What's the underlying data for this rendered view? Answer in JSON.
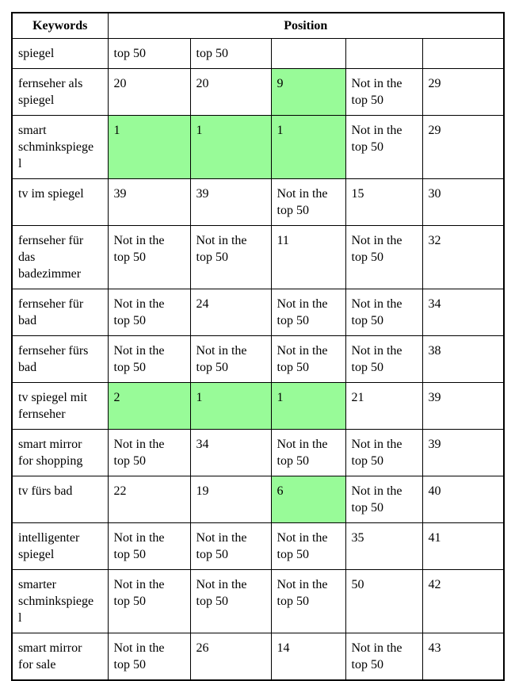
{
  "colors": {
    "highlight": "#98FB98",
    "border": "#000000",
    "background": "#ffffff",
    "text": "#000000"
  },
  "table": {
    "header": {
      "keywords_label": "Keywords",
      "position_label": "Position"
    },
    "not_in_top_text": "Not in the top 50",
    "rows": [
      {
        "keyword": "spiegel",
        "cells": [
          {
            "text": "top 50",
            "highlight": false
          },
          {
            "text": "top 50",
            "highlight": false
          },
          {
            "text": "",
            "highlight": false
          },
          {
            "text": "",
            "highlight": false
          },
          {
            "text": "",
            "highlight": false
          }
        ]
      },
      {
        "keyword": "fernseher als spiegel",
        "cells": [
          {
            "text": "20",
            "highlight": false
          },
          {
            "text": "20",
            "highlight": false
          },
          {
            "text": "9",
            "highlight": true
          },
          {
            "text": "Not in the top 50",
            "highlight": false
          },
          {
            "text": "29",
            "highlight": false
          }
        ]
      },
      {
        "keyword": "smart schminkspiegel",
        "cells": [
          {
            "text": "1",
            "highlight": true
          },
          {
            "text": "1",
            "highlight": true
          },
          {
            "text": "1",
            "highlight": true
          },
          {
            "text": "Not in the top 50",
            "highlight": false
          },
          {
            "text": "29",
            "highlight": false
          }
        ]
      },
      {
        "keyword": "tv im spiegel",
        "cells": [
          {
            "text": "39",
            "highlight": false
          },
          {
            "text": "39",
            "highlight": false
          },
          {
            "text": "Not in the top 50",
            "highlight": false
          },
          {
            "text": "15",
            "highlight": false
          },
          {
            "text": "30",
            "highlight": false
          }
        ]
      },
      {
        "keyword": "fernseher für das badezimmer",
        "cells": [
          {
            "text": "Not in the top 50",
            "highlight": false
          },
          {
            "text": "Not in the top 50",
            "highlight": false
          },
          {
            "text": "11",
            "highlight": false
          },
          {
            "text": "Not in the top 50",
            "highlight": false
          },
          {
            "text": "32",
            "highlight": false
          }
        ]
      },
      {
        "keyword": "fernseher für bad",
        "cells": [
          {
            "text": "Not in the top 50",
            "highlight": false
          },
          {
            "text": "24",
            "highlight": false
          },
          {
            "text": "Not in the top 50",
            "highlight": false
          },
          {
            "text": "Not in the top 50",
            "highlight": false
          },
          {
            "text": "34",
            "highlight": false
          }
        ]
      },
      {
        "keyword": "fernseher fürs bad",
        "cells": [
          {
            "text": "Not in the top 50",
            "highlight": false
          },
          {
            "text": "Not in the top 50",
            "highlight": false
          },
          {
            "text": "Not in the top 50",
            "highlight": false
          },
          {
            "text": "Not in the top 50",
            "highlight": false
          },
          {
            "text": "38",
            "highlight": false
          }
        ]
      },
      {
        "keyword": "tv spiegel mit fernseher",
        "cells": [
          {
            "text": "2",
            "highlight": true
          },
          {
            "text": "1",
            "highlight": true
          },
          {
            "text": "1",
            "highlight": true
          },
          {
            "text": "21",
            "highlight": false
          },
          {
            "text": "39",
            "highlight": false
          }
        ]
      },
      {
        "keyword": "smart mirror for shopping",
        "cells": [
          {
            "text": "Not in the top 50",
            "highlight": false
          },
          {
            "text": "34",
            "highlight": false
          },
          {
            "text": "Not in the top 50",
            "highlight": false
          },
          {
            "text": "Not in the top 50",
            "highlight": false
          },
          {
            "text": "39",
            "highlight": false
          }
        ]
      },
      {
        "keyword": "tv fürs bad",
        "cells": [
          {
            "text": "22",
            "highlight": false
          },
          {
            "text": "19",
            "highlight": false
          },
          {
            "text": "6",
            "highlight": true
          },
          {
            "text": "Not in the top 50",
            "highlight": false
          },
          {
            "text": "40",
            "highlight": false
          }
        ]
      },
      {
        "keyword": "intelligenter spiegel",
        "cells": [
          {
            "text": "Not in the top 50",
            "highlight": false
          },
          {
            "text": "Not in the top 50",
            "highlight": false
          },
          {
            "text": "Not in the top 50",
            "highlight": false
          },
          {
            "text": "35",
            "highlight": false
          },
          {
            "text": "41",
            "highlight": false
          }
        ]
      },
      {
        "keyword": "smarter schminkspiegel",
        "cells": [
          {
            "text": "Not in the top 50",
            "highlight": false
          },
          {
            "text": "Not in the top 50",
            "highlight": false
          },
          {
            "text": "Not in the top 50",
            "highlight": false
          },
          {
            "text": "50",
            "highlight": false
          },
          {
            "text": "42",
            "highlight": false
          }
        ]
      },
      {
        "keyword": "smart mirror for sale",
        "cells": [
          {
            "text": "Not in the top 50",
            "highlight": false
          },
          {
            "text": "26",
            "highlight": false
          },
          {
            "text": "14",
            "highlight": false
          },
          {
            "text": "Not in the top 50",
            "highlight": false
          },
          {
            "text": "43",
            "highlight": false
          }
        ]
      }
    ]
  }
}
